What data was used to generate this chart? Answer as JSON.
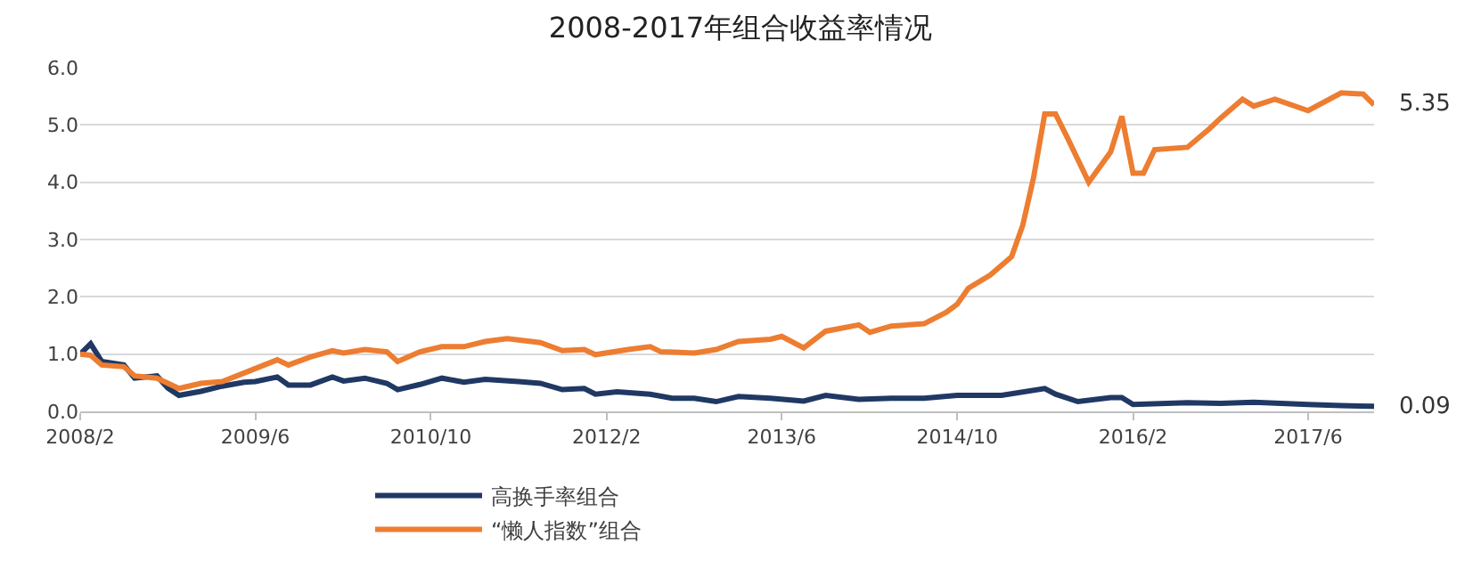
{
  "chart_data": {
    "type": "line",
    "title": "2008-2017年组合收益率情况",
    "series": [
      {
        "name": "高换手率组合",
        "color": "#203864",
        "x": [
          "2008-02",
          "2008-03",
          "2008-04",
          "2008-06",
          "2008-07",
          "2008-09",
          "2008-10",
          "2008-11",
          "2009-01",
          "2009-03",
          "2009-05",
          "2009-06",
          "2009-08",
          "2009-09",
          "2009-11",
          "2010-01",
          "2010-02",
          "2010-04",
          "2010-06",
          "2010-07",
          "2010-09",
          "2010-11",
          "2011-01",
          "2011-03",
          "2011-06",
          "2011-08",
          "2011-10",
          "2011-12",
          "2012-01",
          "2012-03",
          "2012-06",
          "2012-08",
          "2012-10",
          "2012-12",
          "2013-02",
          "2013-05",
          "2013-08",
          "2013-10",
          "2014-01",
          "2014-04",
          "2014-07",
          "2014-10",
          "2015-02",
          "2015-06",
          "2015-07",
          "2015-09",
          "2015-12",
          "2016-01",
          "2016-02",
          "2016-07",
          "2016-10",
          "2017-01",
          "2017-06",
          "2017-09",
          "2017-12"
        ],
        "values": [
          1.0,
          1.18,
          0.87,
          0.81,
          0.58,
          0.62,
          0.41,
          0.28,
          0.35,
          0.44,
          0.51,
          0.52,
          0.6,
          0.46,
          0.46,
          0.6,
          0.53,
          0.58,
          0.49,
          0.38,
          0.47,
          0.58,
          0.51,
          0.56,
          0.52,
          0.49,
          0.38,
          0.4,
          0.3,
          0.34,
          0.3,
          0.23,
          0.23,
          0.17,
          0.26,
          0.23,
          0.18,
          0.28,
          0.21,
          0.23,
          0.23,
          0.28,
          0.28,
          0.4,
          0.3,
          0.17,
          0.24,
          0.24,
          0.12,
          0.15,
          0.14,
          0.16,
          0.12,
          0.1,
          0.09
        ]
      },
      {
        "name": "“懒人指数”组合",
        "color": "#ed7d31",
        "x": [
          "2008-02",
          "2008-03",
          "2008-04",
          "2008-06",
          "2008-07",
          "2008-09",
          "2008-11",
          "2009-01",
          "2009-03",
          "2009-05",
          "2009-08",
          "2009-09",
          "2009-11",
          "2010-01",
          "2010-02",
          "2010-04",
          "2010-06",
          "2010-07",
          "2010-09",
          "2010-11",
          "2011-01",
          "2011-03",
          "2011-05",
          "2011-08",
          "2011-10",
          "2011-12",
          "2012-01",
          "2012-04",
          "2012-06",
          "2012-07",
          "2012-10",
          "2012-12",
          "2013-02",
          "2013-05",
          "2013-06",
          "2013-08",
          "2013-10",
          "2014-01",
          "2014-02",
          "2014-04",
          "2014-07",
          "2014-09",
          "2014-10",
          "2014-11",
          "2015-01",
          "2015-03",
          "2015-04",
          "2015-05",
          "2015-06",
          "2015-07",
          "2015-08",
          "2015-10",
          "2015-12",
          "2016-01",
          "2016-02",
          "2016-03",
          "2016-04",
          "2016-07",
          "2016-09",
          "2016-10",
          "2016-12",
          "2017-01",
          "2017-03",
          "2017-06",
          "2017-09",
          "2017-11",
          "2017-12"
        ],
        "values": [
          1.0,
          0.98,
          0.81,
          0.78,
          0.62,
          0.58,
          0.4,
          0.49,
          0.52,
          0.67,
          0.9,
          0.81,
          0.95,
          1.06,
          1.02,
          1.08,
          1.04,
          0.87,
          1.04,
          1.13,
          1.13,
          1.22,
          1.27,
          1.2,
          1.06,
          1.08,
          0.99,
          1.08,
          1.13,
          1.04,
          1.02,
          1.08,
          1.22,
          1.26,
          1.31,
          1.11,
          1.4,
          1.51,
          1.38,
          1.49,
          1.53,
          1.73,
          1.87,
          2.15,
          2.38,
          2.7,
          3.25,
          4.08,
          5.19,
          5.19,
          4.8,
          4.0,
          4.53,
          5.15,
          4.16,
          4.16,
          4.57,
          4.61,
          4.94,
          5.12,
          5.45,
          5.33,
          5.45,
          5.25,
          5.56,
          5.54,
          5.35
        ]
      }
    ],
    "annotations": [
      {
        "text": "5.35",
        "x": "2017-12",
        "y": 5.35
      },
      {
        "text": "0.09",
        "x": "2017-12",
        "y": 0.09
      }
    ],
    "xlim": [
      "2008-02",
      "2017-12"
    ],
    "xticks": [
      {
        "value": "2008-02",
        "label": "2008/2"
      },
      {
        "value": "2009-06",
        "label": "2009/6"
      },
      {
        "value": "2010-10",
        "label": "2010/10"
      },
      {
        "value": "2012-02",
        "label": "2012/2"
      },
      {
        "value": "2013-06",
        "label": "2013/6"
      },
      {
        "value": "2014-10",
        "label": "2014/10"
      },
      {
        "value": "2016-02",
        "label": "2016/2"
      },
      {
        "value": "2017-06",
        "label": "2017/6"
      }
    ],
    "ylim": [
      0,
      6
    ],
    "yticks": [
      {
        "value": 0,
        "label": "0.0"
      },
      {
        "value": 1,
        "label": "1.0"
      },
      {
        "value": 2,
        "label": "2.0"
      },
      {
        "value": 3,
        "label": "3.0"
      },
      {
        "value": 4,
        "label": "4.0"
      },
      {
        "value": 5,
        "label": "5.0"
      },
      {
        "value": 6,
        "label": "6.0"
      }
    ],
    "grid": "y",
    "legend": "bottom",
    "marker": "none",
    "line_style": "solid"
  }
}
